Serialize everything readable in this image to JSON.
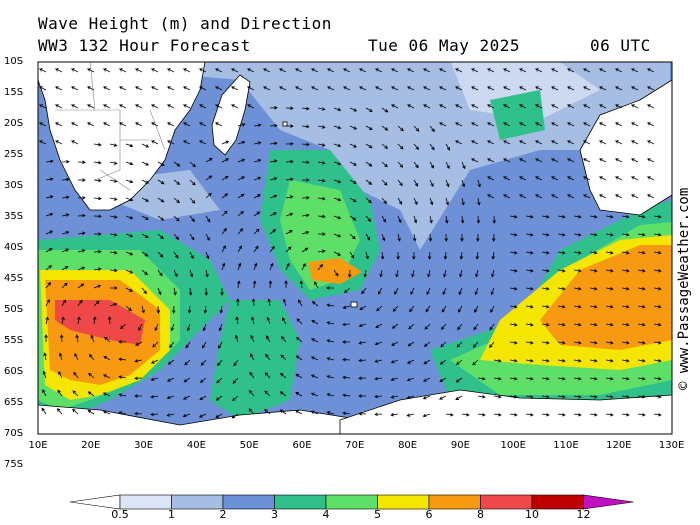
{
  "header": {
    "title_line1": "Wave Height (m) and Direction",
    "title_line2": "WW3 132 Hour Forecast",
    "date": "Tue 06 May 2025",
    "time": "06 UTC"
  },
  "credit": "© www.PassageWeather.com",
  "axes": {
    "lat_labels": [
      "10S",
      "15S",
      "20S",
      "25S",
      "30S",
      "35S",
      "40S",
      "45S",
      "50S",
      "55S",
      "60S",
      "65S",
      "70S",
      "75S"
    ],
    "lon_labels": [
      "10E",
      "20E",
      "30E",
      "40E",
      "50E",
      "60E",
      "70E",
      "80E",
      "90E",
      "100E",
      "110E",
      "120E",
      "130E"
    ]
  },
  "legend": {
    "labels": [
      "0.5",
      "1",
      "2",
      "3",
      "4",
      "5",
      "6",
      "8",
      "10",
      "12"
    ],
    "colors": [
      "#ffffff",
      "#dde6f6",
      "#a6bde4",
      "#6e90d6",
      "#30c08c",
      "#5ee068",
      "#f4e600",
      "#f79a12",
      "#ef4848",
      "#c00000",
      "#c010c0"
    ]
  },
  "map_colors": {
    "land": "#ffffff",
    "coast": "#000000",
    "arrow": "#000000"
  }
}
